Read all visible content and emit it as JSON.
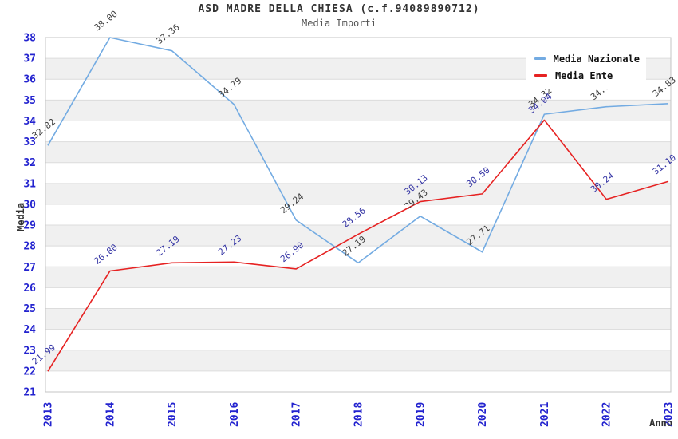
{
  "header": {
    "title": "ASD MADRE DELLA CHIESA (c.f.94089890712)",
    "subtitle": "Media Importi"
  },
  "chart_data": {
    "type": "line",
    "title": "ASD MADRE DELLA CHIESA (c.f.94089890712)",
    "subtitle": "Media Importi",
    "xlabel": "Anno",
    "ylabel": "Media",
    "categories": [
      "2013",
      "2014",
      "2015",
      "2016",
      "2017",
      "2018",
      "2019",
      "2020",
      "2021",
      "2022",
      "2023"
    ],
    "ylim": [
      21,
      38
    ],
    "yticks": [
      21,
      22,
      23,
      24,
      25,
      26,
      27,
      28,
      29,
      30,
      31,
      32,
      33,
      34,
      35,
      36,
      37,
      38
    ],
    "grid": "horizontal-striped",
    "legend_position": "top-right",
    "point_labels": "values shown at each point, rotated",
    "series": [
      {
        "name": "Media Nazionale",
        "color": "#73abe2",
        "label_color": "#3d3d3d",
        "values": [
          32.82,
          38.0,
          37.36,
          34.79,
          29.24,
          27.19,
          29.43,
          27.71,
          34.32,
          34.68,
          34.83
        ]
      },
      {
        "name": "Media Ente",
        "color": "#e62222",
        "label_color": "#3434a4",
        "values": [
          21.99,
          26.8,
          27.19,
          27.23,
          26.9,
          28.56,
          30.13,
          30.5,
          34.04,
          30.24,
          31.1
        ]
      }
    ]
  },
  "colors": {
    "tick_label": "#2323cf",
    "stripe": "#f0f0f0",
    "gridline": "#dcdcdc",
    "plot_border": "#c4c4c4",
    "title_text": "#333333",
    "subtitle_text": "#555555"
  }
}
